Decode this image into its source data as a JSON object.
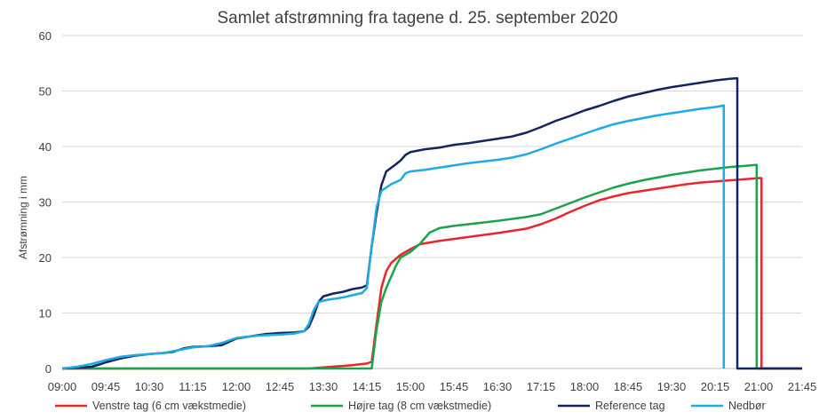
{
  "chart_data": {
    "type": "line",
    "title": "Samlet afstrømning fra tagene d. 25. september 2020",
    "xlabel": "",
    "ylabel": "Afstrømning i mm",
    "ylim": [
      0,
      60
    ],
    "yticks": [
      0,
      10,
      20,
      30,
      40,
      50,
      60
    ],
    "xlim": [
      "09:00",
      "21:45"
    ],
    "xticks": [
      "09:00",
      "09:45",
      "10:30",
      "11:15",
      "12:00",
      "12:45",
      "13:30",
      "14:15",
      "15:00",
      "15:45",
      "16:30",
      "17:15",
      "18:00",
      "18:45",
      "19:30",
      "20:15",
      "21:00",
      "21:45"
    ],
    "grid": true,
    "legend": "bottom",
    "series": [
      {
        "name": "Venstre tag (6 cm vækstmedie)",
        "color": "#e8262b",
        "points": [
          [
            "09:00",
            0
          ],
          [
            "13:15",
            0
          ],
          [
            "13:30",
            0.2
          ],
          [
            "14:00",
            0.6
          ],
          [
            "14:15",
            0.9
          ],
          [
            "14:20",
            1.2
          ],
          [
            "14:25",
            8
          ],
          [
            "14:30",
            14.5
          ],
          [
            "14:35",
            17.5
          ],
          [
            "14:40",
            19
          ],
          [
            "14:50",
            20.5
          ],
          [
            "15:00",
            21.5
          ],
          [
            "15:10",
            22.4
          ],
          [
            "15:30",
            23
          ],
          [
            "16:00",
            23.7
          ],
          [
            "16:30",
            24.4
          ],
          [
            "17:00",
            25.2
          ],
          [
            "17:15",
            26
          ],
          [
            "17:30",
            27
          ],
          [
            "17:45",
            28.2
          ],
          [
            "18:00",
            29.3
          ],
          [
            "18:15",
            30.3
          ],
          [
            "18:30",
            31
          ],
          [
            "18:45",
            31.6
          ],
          [
            "19:00",
            32
          ],
          [
            "19:15",
            32.4
          ],
          [
            "19:30",
            32.8
          ],
          [
            "19:45",
            33.2
          ],
          [
            "20:00",
            33.5
          ],
          [
            "20:15",
            33.7
          ],
          [
            "20:30",
            33.9
          ],
          [
            "20:45",
            34.1
          ],
          [
            "21:00",
            34.3
          ],
          [
            "21:03",
            34.3
          ],
          [
            "21:03",
            0
          ],
          [
            "21:45",
            0
          ]
        ]
      },
      {
        "name": "Højre tag (8 cm vækstmedie)",
        "color": "#1aa34a",
        "points": [
          [
            "09:00",
            0
          ],
          [
            "14:20",
            0
          ],
          [
            "14:25",
            7
          ],
          [
            "14:30",
            12
          ],
          [
            "14:35",
            14.5
          ],
          [
            "14:40",
            16.5
          ],
          [
            "14:45",
            18.5
          ],
          [
            "14:50",
            20
          ],
          [
            "15:00",
            21
          ],
          [
            "15:10",
            22.5
          ],
          [
            "15:20",
            24.5
          ],
          [
            "15:30",
            25.3
          ],
          [
            "15:45",
            25.7
          ],
          [
            "16:00",
            26
          ],
          [
            "16:30",
            26.6
          ],
          [
            "17:00",
            27.3
          ],
          [
            "17:15",
            27.8
          ],
          [
            "17:30",
            28.8
          ],
          [
            "17:45",
            29.8
          ],
          [
            "18:00",
            30.8
          ],
          [
            "18:15",
            31.7
          ],
          [
            "18:30",
            32.6
          ],
          [
            "18:45",
            33.3
          ],
          [
            "19:00",
            33.9
          ],
          [
            "19:15",
            34.4
          ],
          [
            "19:30",
            34.9
          ],
          [
            "19:45",
            35.3
          ],
          [
            "20:00",
            35.7
          ],
          [
            "20:15",
            36
          ],
          [
            "20:30",
            36.3
          ],
          [
            "20:45",
            36.5
          ],
          [
            "20:58",
            36.7
          ],
          [
            "20:58",
            0
          ],
          [
            "21:45",
            0
          ]
        ]
      },
      {
        "name": "Reference tag",
        "color": "#13255e",
        "points": [
          [
            "09:00",
            0
          ],
          [
            "09:30",
            0.3
          ],
          [
            "09:40",
            0.8
          ],
          [
            "09:45",
            1.1
          ],
          [
            "10:00",
            1.8
          ],
          [
            "10:15",
            2.3
          ],
          [
            "10:30",
            2.6
          ],
          [
            "10:45",
            2.8
          ],
          [
            "10:55",
            3
          ],
          [
            "11:05",
            3.6
          ],
          [
            "11:15",
            3.9
          ],
          [
            "11:30",
            4
          ],
          [
            "11:45",
            4.2
          ],
          [
            "11:55",
            5
          ],
          [
            "12:00",
            5.4
          ],
          [
            "12:15",
            5.8
          ],
          [
            "12:30",
            6.2
          ],
          [
            "12:45",
            6.4
          ],
          [
            "13:00",
            6.5
          ],
          [
            "13:10",
            6.7
          ],
          [
            "13:15",
            7.5
          ],
          [
            "13:20",
            9.5
          ],
          [
            "13:25",
            12
          ],
          [
            "13:30",
            13
          ],
          [
            "13:40",
            13.5
          ],
          [
            "13:50",
            13.8
          ],
          [
            "14:00",
            14.3
          ],
          [
            "14:10",
            14.6
          ],
          [
            "14:15",
            15
          ],
          [
            "14:20",
            22
          ],
          [
            "14:25",
            28
          ],
          [
            "14:30",
            33
          ],
          [
            "14:35",
            35.5
          ],
          [
            "14:45",
            36.8
          ],
          [
            "14:50",
            37.5
          ],
          [
            "14:55",
            38.5
          ],
          [
            "15:00",
            39
          ],
          [
            "15:15",
            39.5
          ],
          [
            "15:30",
            39.8
          ],
          [
            "15:45",
            40.3
          ],
          [
            "16:00",
            40.6
          ],
          [
            "16:15",
            41
          ],
          [
            "16:30",
            41.4
          ],
          [
            "16:45",
            41.8
          ],
          [
            "17:00",
            42.5
          ],
          [
            "17:15",
            43.5
          ],
          [
            "17:30",
            44.6
          ],
          [
            "17:45",
            45.5
          ],
          [
            "18:00",
            46.5
          ],
          [
            "18:15",
            47.3
          ],
          [
            "18:30",
            48.2
          ],
          [
            "18:45",
            49
          ],
          [
            "19:00",
            49.6
          ],
          [
            "19:15",
            50.2
          ],
          [
            "19:30",
            50.7
          ],
          [
            "19:45",
            51.1
          ],
          [
            "20:00",
            51.5
          ],
          [
            "20:15",
            51.9
          ],
          [
            "20:30",
            52.2
          ],
          [
            "20:38",
            52.3
          ],
          [
            "20:38",
            0
          ],
          [
            "21:45",
            0
          ]
        ]
      },
      {
        "name": "Nedbør",
        "color": "#1eaae2",
        "points": [
          [
            "09:00",
            0
          ],
          [
            "09:15",
            0.3
          ],
          [
            "09:30",
            0.8
          ],
          [
            "09:45",
            1.5
          ],
          [
            "10:00",
            2.1
          ],
          [
            "10:15",
            2.4
          ],
          [
            "10:30",
            2.6
          ],
          [
            "10:45",
            2.8
          ],
          [
            "11:00",
            3.3
          ],
          [
            "11:15",
            3.8
          ],
          [
            "11:30",
            4
          ],
          [
            "11:45",
            4.6
          ],
          [
            "12:00",
            5.5
          ],
          [
            "12:15",
            5.8
          ],
          [
            "12:30",
            6
          ],
          [
            "12:45",
            6.1
          ],
          [
            "13:00",
            6.3
          ],
          [
            "13:10",
            6.7
          ],
          [
            "13:15",
            8
          ],
          [
            "13:20",
            10.5
          ],
          [
            "13:25",
            12
          ],
          [
            "13:35",
            12.4
          ],
          [
            "13:50",
            12.8
          ],
          [
            "14:00",
            13.2
          ],
          [
            "14:10",
            13.6
          ],
          [
            "14:15",
            14.5
          ],
          [
            "14:20",
            22
          ],
          [
            "14:25",
            29
          ],
          [
            "14:30",
            32
          ],
          [
            "14:40",
            33.2
          ],
          [
            "14:50",
            34
          ],
          [
            "14:55",
            35.2
          ],
          [
            "15:00",
            35.5
          ],
          [
            "15:15",
            35.8
          ],
          [
            "15:30",
            36.2
          ],
          [
            "15:45",
            36.6
          ],
          [
            "16:00",
            37
          ],
          [
            "16:15",
            37.3
          ],
          [
            "16:30",
            37.6
          ],
          [
            "16:45",
            38
          ],
          [
            "17:00",
            38.6
          ],
          [
            "17:15",
            39.5
          ],
          [
            "17:30",
            40.5
          ],
          [
            "17:45",
            41.4
          ],
          [
            "18:00",
            42.3
          ],
          [
            "18:15",
            43.2
          ],
          [
            "18:30",
            44
          ],
          [
            "18:45",
            44.6
          ],
          [
            "19:00",
            45.1
          ],
          [
            "19:15",
            45.6
          ],
          [
            "19:30",
            46
          ],
          [
            "19:45",
            46.4
          ],
          [
            "20:00",
            46.8
          ],
          [
            "20:15",
            47.1
          ],
          [
            "20:24",
            47.4
          ],
          [
            "20:24",
            0
          ]
        ]
      }
    ]
  }
}
